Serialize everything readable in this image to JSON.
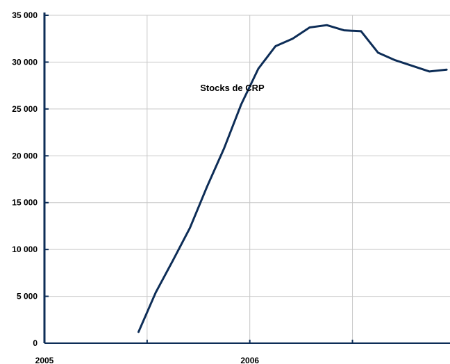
{
  "chart_data": {
    "type": "line",
    "title": "",
    "xlabel": "",
    "ylabel": "",
    "ylim": [
      0,
      35000
    ],
    "y_ticks": [
      0,
      5000,
      10000,
      15000,
      20000,
      25000,
      30000,
      35000
    ],
    "y_tick_labels": [
      "0",
      "5 000",
      "10 000",
      "15 000",
      "20 000",
      "25 000",
      "30 000",
      "35 000"
    ],
    "x_axis": {
      "unit": "month index from January 2005",
      "range": [
        0,
        23.7
      ],
      "labels": [
        {
          "text": "2005",
          "at": 0
        },
        {
          "text": "2006",
          "at": 12
        }
      ],
      "gridlines_at": [
        6,
        12,
        18
      ]
    },
    "grid": true,
    "series": [
      {
        "name": "Stocks de CRP",
        "color": "#0d2d57",
        "x": [
          5.5,
          6.5,
          7.5,
          8.5,
          9.5,
          10.5,
          11.5,
          12.5,
          13.5,
          14.5,
          15.5,
          16.5,
          17.5,
          18.5,
          19.5,
          20.5,
          21.5,
          22.5,
          23.5
        ],
        "values": [
          1200,
          5400,
          8800,
          12300,
          16700,
          20800,
          25500,
          29300,
          31700,
          32500,
          33700,
          33950,
          33400,
          33300,
          31000,
          30200,
          29600,
          29000,
          29200
        ]
      }
    ],
    "annotations": [
      {
        "text": "Stocks de CRP",
        "at_x": 9.1,
        "at_y": 26900
      }
    ]
  }
}
